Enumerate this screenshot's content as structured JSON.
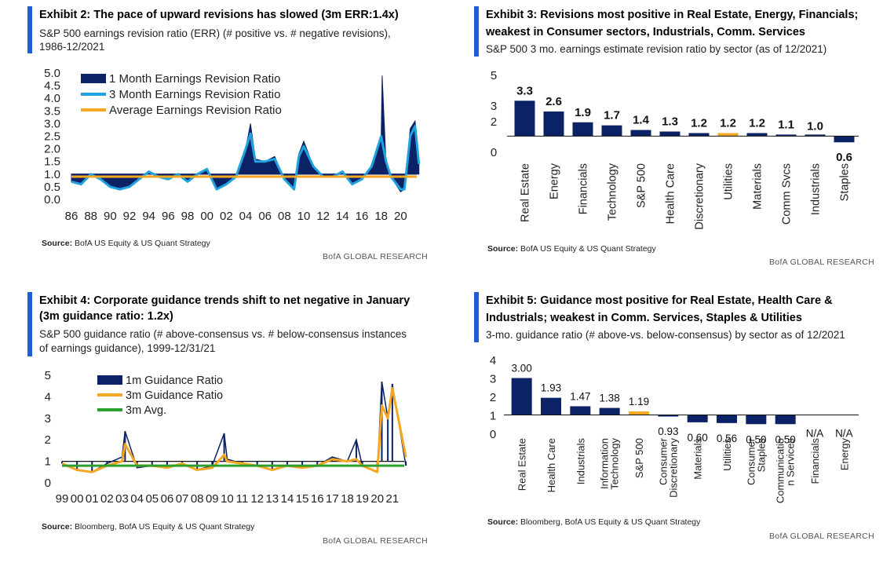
{
  "exhibits": [
    {
      "title_line1": "Exhibit 2: The pace of upward revisions has slowed (3m ERR:1.4x)",
      "sub_line1": "S&P 500 earnings revision ratio (ERR) (# positive vs. # negative revisions),",
      "sub_line2": "1986-12/2021",
      "source_label": "Source:",
      "source_text": "BofA US Equity & US Quant Strategy",
      "brand": "BofA GLOBAL RESEARCH"
    },
    {
      "title_line1": "Exhibit 3: Revisions most positive in Real Estate, Energy, Financials;",
      "title_line2": "weakest in Consumer sectors, Industrials, Comm. Services",
      "sub_line1": "S&P 500 3 mo. earnings estimate revision ratio by sector (as of 12/2021)",
      "source_label": "Source:",
      "source_text": "BofA US Equity & US Quant Strategy",
      "brand": "BofA GLOBAL RESEARCH"
    },
    {
      "title_line1": "Exhibit 4: Corporate guidance trends shift to net negative in January",
      "title_line2": "(3m guidance ratio: 1.2x)",
      "sub_line1": "S&P 500 guidance ratio (# above-consensus vs. # below-consensus instances",
      "sub_line2": "of earnings guidance), 1999-12/31/21",
      "source_label": "Source:",
      "source_text": "Bloomberg, BofA US Equity & US Quant Strategy",
      "brand": "BofA GLOBAL RESEARCH"
    },
    {
      "title_line1": "Exhibit 5: Guidance most positive for Real Estate, Health Care &",
      "title_line2": "Industrials; weakest in Comm. Services, Staples & Utilities",
      "sub_line1": "3-mo. guidance ratio (# above-vs. below-consensus) by sector as of 12/2021",
      "source_label": "Source:",
      "source_text": "Bloomberg, BofA US Equity & US Quant Strategy",
      "brand": "BofA GLOBAL RESEARCH"
    }
  ],
  "colors": {
    "accent": "#1f5fd6",
    "navy": "#0b2265",
    "light_blue": "#1fa2e0",
    "orange": "#f5a623",
    "green": "#2ca02c"
  },
  "chart_data": [
    {
      "type": "area",
      "x_tick_labels": [
        "86",
        "88",
        "90",
        "92",
        "94",
        "96",
        "98",
        "00",
        "02",
        "04",
        "06",
        "08",
        "10",
        "12",
        "14",
        "16",
        "18",
        "20"
      ],
      "x_tick_years": [
        1986,
        1988,
        1990,
        1992,
        1994,
        1996,
        1998,
        2000,
        2002,
        2004,
        2006,
        2008,
        2010,
        2012,
        2014,
        2016,
        2018,
        2020
      ],
      "xlim": [
        1986,
        2022
      ],
      "ylim": [
        0,
        5
      ],
      "y_ticks": [
        "0.0",
        "0.5",
        "1.0",
        "1.5",
        "2.0",
        "2.5",
        "3.0",
        "3.5",
        "4.0",
        "4.5",
        "5.0"
      ],
      "legend_position": "top-left",
      "series": [
        {
          "name": "1 Month Earnings Revision Ratio",
          "color": "#0b2265",
          "style": "area",
          "x": [
            1986,
            1987,
            1988,
            1989,
            1990,
            1991,
            1992,
            1993,
            1994,
            1995,
            1996,
            1997,
            1998,
            1999,
            2000,
            2001,
            2002,
            2003,
            2004,
            2004.5,
            2005,
            2006,
            2007,
            2008,
            2009,
            2009.5,
            2010,
            2011,
            2012,
            2013,
            2014,
            2015,
            2016,
            2017,
            2018,
            2018.1,
            2018.5,
            2019,
            2020,
            2020.4,
            2021,
            2021.5,
            2021.9
          ],
          "y": [
            0.7,
            0.6,
            1.0,
            0.8,
            0.5,
            0.4,
            0.5,
            0.8,
            1.1,
            0.9,
            0.8,
            1.0,
            0.7,
            1.0,
            1.2,
            0.4,
            0.6,
            0.9,
            2.0,
            3.0,
            1.6,
            1.5,
            1.7,
            0.8,
            0.4,
            1.8,
            2.3,
            1.3,
            0.9,
            0.9,
            1.1,
            0.6,
            0.8,
            1.3,
            2.5,
            4.9,
            1.4,
            0.9,
            0.3,
            0.4,
            2.8,
            3.1,
            1.4
          ]
        },
        {
          "name": "3 Month Earnings Revision Ratio",
          "color": "#1fa2e0",
          "style": "line",
          "x": [
            1986,
            1987,
            1988,
            1989,
            1990,
            1991,
            1992,
            1993,
            1994,
            1995,
            1996,
            1997,
            1998,
            1999,
            2000,
            2001,
            2002,
            2003,
            2004,
            2004.5,
            2005,
            2006,
            2007,
            2008,
            2009,
            2009.5,
            2010,
            2011,
            2012,
            2013,
            2014,
            2015,
            2016,
            2017,
            2018,
            2018.5,
            2019,
            2020,
            2020.4,
            2021,
            2021.5,
            2021.9
          ],
          "y": [
            0.7,
            0.6,
            1.0,
            0.8,
            0.5,
            0.4,
            0.5,
            0.8,
            1.1,
            0.9,
            0.8,
            1.0,
            0.7,
            1.0,
            1.2,
            0.4,
            0.6,
            0.9,
            2.0,
            2.6,
            1.5,
            1.5,
            1.6,
            0.8,
            0.4,
            1.7,
            2.1,
            1.3,
            0.9,
            0.9,
            1.1,
            0.6,
            0.8,
            1.3,
            2.5,
            1.5,
            0.9,
            0.4,
            0.4,
            2.5,
            2.9,
            1.4
          ]
        },
        {
          "name": "Average Earnings Revision Ratio",
          "color": "#f5a623",
          "style": "flat",
          "value": 0.9
        }
      ]
    },
    {
      "type": "bar",
      "categories": [
        "Real Estate",
        "Energy",
        "Financials",
        "Technology",
        "S&P 500",
        "Health Care",
        "Discretionary",
        "Utilities",
        "Materials",
        "Comm Svcs",
        "Industrials",
        "Staples"
      ],
      "values": [
        3.3,
        2.6,
        1.9,
        1.7,
        1.4,
        1.3,
        1.2,
        1.2,
        1.2,
        1.1,
        1.0,
        0.6
      ],
      "value_labels": [
        "3.3",
        "2.6",
        "1.9",
        "1.7",
        "1.4",
        "1.3",
        "1.2",
        "1.2",
        "1.2",
        "1.1",
        "1.0",
        "0.6"
      ],
      "baseline": 1,
      "highlight_index": 7,
      "ylim": [
        0,
        5
      ],
      "y_ticks": [
        "0",
        "2",
        "3",
        "5"
      ],
      "y_tick_values": [
        0,
        2,
        3,
        5
      ]
    },
    {
      "type": "line",
      "x_tick_labels": [
        "99",
        "00",
        "01",
        "02",
        "03",
        "04",
        "05",
        "06",
        "07",
        "08",
        "09",
        "10",
        "11",
        "12",
        "13",
        "14",
        "15",
        "16",
        "17",
        "18",
        "19",
        "20",
        "21"
      ],
      "x_tick_years": [
        1999,
        2000,
        2001,
        2002,
        2003,
        2004,
        2005,
        2006,
        2007,
        2008,
        2009,
        2010,
        2011,
        2012,
        2013,
        2014,
        2015,
        2016,
        2017,
        2018,
        2019,
        2020,
        2021
      ],
      "xlim": [
        1999,
        2022
      ],
      "ylim": [
        0,
        5
      ],
      "y_ticks": [
        "0",
        "1",
        "2",
        "3",
        "4",
        "5"
      ],
      "legend_position": "top-left",
      "series": [
        {
          "name": "1m Guidance Ratio",
          "color": "#0b2265",
          "style": "spiky",
          "x": [
            1999,
            2000,
            2001,
            2002,
            2003,
            2003.2,
            2004,
            2005,
            2006,
            2007,
            2008,
            2009,
            2009.8,
            2010,
            2011,
            2012,
            2013,
            2014,
            2015,
            2016,
            2017,
            2018,
            2018.6,
            2019,
            2020,
            2020.3,
            2020.7,
            2021,
            2021.9
          ],
          "y": [
            0.9,
            0.6,
            0.5,
            0.9,
            1.2,
            2.4,
            0.7,
            0.8,
            0.7,
            0.9,
            0.6,
            0.8,
            2.3,
            1.1,
            0.9,
            0.8,
            0.6,
            0.8,
            0.7,
            0.8,
            1.2,
            1.0,
            2.0,
            0.8,
            0.5,
            4.7,
            3.0,
            4.6,
            0.8
          ]
        },
        {
          "name": "3m Guidance Ratio",
          "color": "#f5a623",
          "style": "line",
          "x": [
            1999,
            2000,
            2001,
            2002,
            2003,
            2003.2,
            2004,
            2005,
            2006,
            2007,
            2008,
            2009,
            2009.8,
            2010,
            2011,
            2012,
            2013,
            2014,
            2015,
            2016,
            2017,
            2018,
            2018.6,
            2019,
            2020,
            2020.3,
            2020.7,
            2021,
            2021.9
          ],
          "y": [
            0.9,
            0.6,
            0.5,
            0.8,
            1.0,
            1.8,
            0.8,
            0.8,
            0.7,
            0.9,
            0.6,
            0.7,
            1.3,
            1.0,
            0.9,
            0.8,
            0.6,
            0.8,
            0.7,
            0.8,
            1.1,
            1.0,
            1.1,
            0.8,
            0.5,
            3.6,
            3.0,
            4.4,
            1.2
          ]
        },
        {
          "name": "3m Avg.",
          "color": "#2ca02c",
          "style": "flat",
          "value": 0.8
        }
      ]
    },
    {
      "type": "bar",
      "categories": [
        "Real Estate",
        "Health Care",
        "Industrials",
        "Information Technology",
        "S&P 500",
        "Consumer Discretionary",
        "Materials",
        "Utilities",
        "Consumer Staples",
        "Communication Services",
        "Financials",
        "Energy"
      ],
      "category_lines": [
        [
          "Real Estate"
        ],
        [
          "Health Care"
        ],
        [
          "Industrials"
        ],
        [
          "Information",
          "Technology"
        ],
        [
          "S&P 500"
        ],
        [
          "Consumer",
          "Discretionary"
        ],
        [
          "Materials"
        ],
        [
          "Utilities"
        ],
        [
          "Consumer",
          "Staples"
        ],
        [
          "Communicatio",
          "n Services"
        ],
        [
          "Financials"
        ],
        [
          "Energy"
        ]
      ],
      "values": [
        3.0,
        1.93,
        1.47,
        1.38,
        1.19,
        0.93,
        0.6,
        0.56,
        0.5,
        0.5,
        null,
        null
      ],
      "value_labels": [
        "3.00",
        "1.93",
        "1.47",
        "1.38",
        "1.19",
        "0.93",
        "0.60",
        "0.56",
        "0.50",
        "0.50",
        "N/A",
        "N/A"
      ],
      "baseline": 1,
      "highlight_index": 4,
      "ylim": [
        0,
        4
      ],
      "y_ticks": [
        "0",
        "1",
        "2",
        "3",
        "4"
      ],
      "y_tick_values": [
        0,
        1,
        2,
        3,
        4
      ]
    }
  ]
}
